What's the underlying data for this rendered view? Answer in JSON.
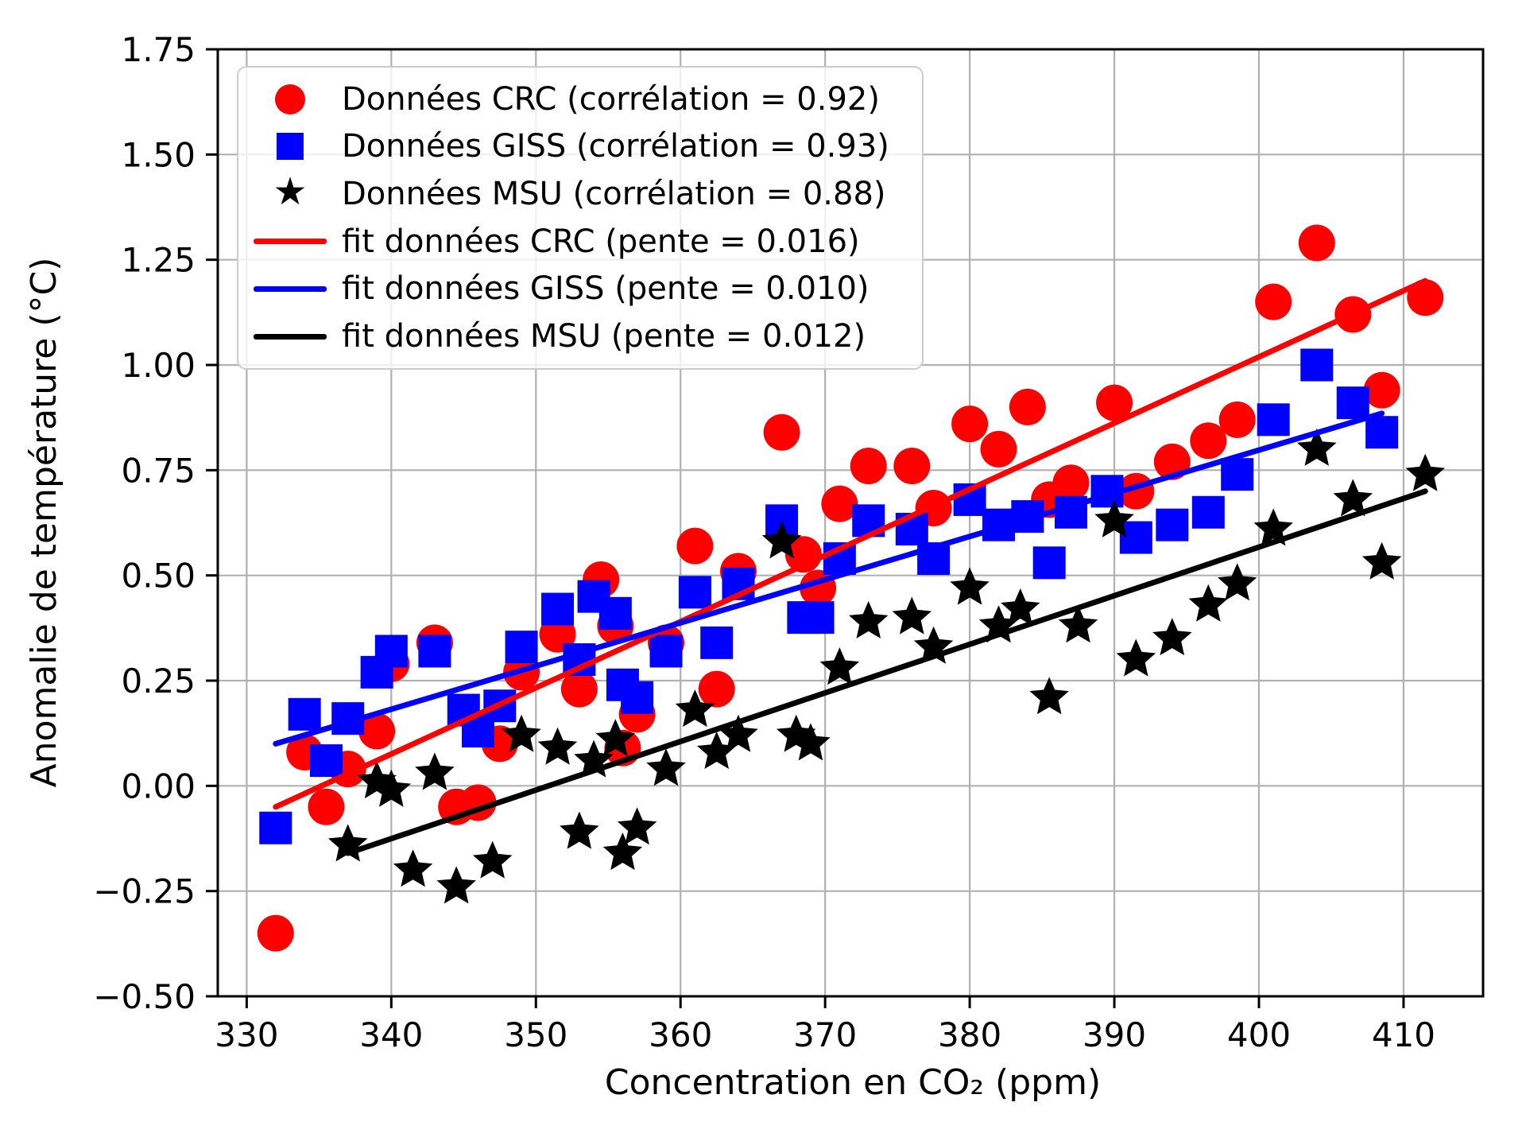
{
  "figure": {
    "background": "#ffffff"
  },
  "legend": {
    "items": [
      {
        "marker": "circle",
        "color": "#ff0000",
        "label": "Données CRC (corrélation = 0.92)"
      },
      {
        "marker": "square",
        "color": "#0000ff",
        "label": "Données GISS (corrélation = 0.93)"
      },
      {
        "marker": "star",
        "color": "#000000",
        "label": "Données MSU (corrélation = 0.88)"
      },
      {
        "marker": "line",
        "color": "#ff0000",
        "label": "fit données CRC (pente = 0.016)"
      },
      {
        "marker": "line",
        "color": "#0000ff",
        "label": "fit données GISS (pente = 0.010)"
      },
      {
        "marker": "line",
        "color": "#000000",
        "label": "fit données MSU (pente = 0.012)"
      }
    ]
  },
  "chart_data": {
    "type": "scatter",
    "title": "",
    "xlabel": "Concentration en CO₂ (ppm)",
    "ylabel": "Anomalie de température (°C)",
    "xlim": [
      328,
      415.5
    ],
    "ylim": [
      -0.5,
      1.75
    ],
    "grid": true,
    "legend_position": "upper left",
    "x_ticks": [
      {
        "v": 330,
        "label": "330"
      },
      {
        "v": 340,
        "label": "340"
      },
      {
        "v": 350,
        "label": "350"
      },
      {
        "v": 360,
        "label": "360"
      },
      {
        "v": 370,
        "label": "370"
      },
      {
        "v": 380,
        "label": "380"
      },
      {
        "v": 390,
        "label": "390"
      },
      {
        "v": 400,
        "label": "400"
      },
      {
        "v": 410,
        "label": "410"
      }
    ],
    "y_ticks": [
      {
        "v": -0.5,
        "label": "−0.50"
      },
      {
        "v": -0.25,
        "label": "−0.25"
      },
      {
        "v": 0.0,
        "label": "0.00"
      },
      {
        "v": 0.25,
        "label": "0.25"
      },
      {
        "v": 0.5,
        "label": "0.50"
      },
      {
        "v": 0.75,
        "label": "0.75"
      },
      {
        "v": 1.0,
        "label": "1.00"
      },
      {
        "v": 1.25,
        "label": "1.25"
      },
      {
        "v": 1.5,
        "label": "1.50"
      },
      {
        "v": 1.75,
        "label": "1.75"
      }
    ],
    "series": [
      {
        "id": "crc",
        "name": "Données CRC",
        "marker": "circle",
        "color": "#ff0000",
        "correlation": 0.92,
        "points": [
          [
            332,
            -0.35
          ],
          [
            334,
            0.08
          ],
          [
            335.5,
            -0.05
          ],
          [
            337,
            0.04
          ],
          [
            339,
            0.13
          ],
          [
            340,
            0.29
          ],
          [
            343,
            0.34
          ],
          [
            344.5,
            -0.05
          ],
          [
            346,
            -0.04
          ],
          [
            347.5,
            0.1
          ],
          [
            349,
            0.27
          ],
          [
            351.5,
            0.36
          ],
          [
            353,
            0.23
          ],
          [
            354.5,
            0.49
          ],
          [
            355.5,
            0.38
          ],
          [
            356,
            0.09
          ],
          [
            357,
            0.17
          ],
          [
            359,
            0.34
          ],
          [
            361,
            0.57
          ],
          [
            362.5,
            0.23
          ],
          [
            364,
            0.51
          ],
          [
            367,
            0.84
          ],
          [
            368.5,
            0.55
          ],
          [
            369.5,
            0.47
          ],
          [
            371,
            0.67
          ],
          [
            373,
            0.76
          ],
          [
            376,
            0.76
          ],
          [
            377.5,
            0.66
          ],
          [
            380,
            0.86
          ],
          [
            382,
            0.8
          ],
          [
            384,
            0.9
          ],
          [
            385.5,
            0.68
          ],
          [
            387,
            0.72
          ],
          [
            390,
            0.91
          ],
          [
            391.5,
            0.7
          ],
          [
            394,
            0.77
          ],
          [
            396.5,
            0.82
          ],
          [
            398.5,
            0.87
          ],
          [
            401,
            1.15
          ],
          [
            404,
            1.29
          ],
          [
            406.5,
            1.12
          ],
          [
            408.5,
            0.94
          ],
          [
            411.5,
            1.16
          ]
        ]
      },
      {
        "id": "giss",
        "name": "Données GISS",
        "marker": "square",
        "color": "#0000ff",
        "correlation": 0.93,
        "points": [
          [
            332,
            -0.1
          ],
          [
            334,
            0.17
          ],
          [
            335.5,
            0.06
          ],
          [
            337,
            0.16
          ],
          [
            339,
            0.27
          ],
          [
            340,
            0.32
          ],
          [
            343,
            0.32
          ],
          [
            345,
            0.18
          ],
          [
            346,
            0.13
          ],
          [
            347.5,
            0.19
          ],
          [
            349,
            0.33
          ],
          [
            351.5,
            0.42
          ],
          [
            353,
            0.3
          ],
          [
            354,
            0.45
          ],
          [
            355.5,
            0.41
          ],
          [
            356,
            0.24
          ],
          [
            357,
            0.21
          ],
          [
            359,
            0.32
          ],
          [
            361,
            0.46
          ],
          [
            362.5,
            0.34
          ],
          [
            364,
            0.48
          ],
          [
            367,
            0.63
          ],
          [
            368.5,
            0.4
          ],
          [
            369.5,
            0.4
          ],
          [
            371,
            0.54
          ],
          [
            373,
            0.63
          ],
          [
            376,
            0.61
          ],
          [
            377.5,
            0.54
          ],
          [
            380,
            0.68
          ],
          [
            382,
            0.62
          ],
          [
            384,
            0.64
          ],
          [
            385.5,
            0.53
          ],
          [
            387,
            0.65
          ],
          [
            389.5,
            0.7
          ],
          [
            391.5,
            0.59
          ],
          [
            394,
            0.62
          ],
          [
            396.5,
            0.65
          ],
          [
            398.5,
            0.74
          ],
          [
            401,
            0.87
          ],
          [
            404,
            1.0
          ],
          [
            406.5,
            0.91
          ],
          [
            408.5,
            0.84
          ]
        ]
      },
      {
        "id": "msu",
        "name": "Données MSU",
        "marker": "star",
        "color": "#000000",
        "correlation": 0.88,
        "points": [
          [
            337,
            -0.14
          ],
          [
            339,
            0.01
          ],
          [
            340,
            -0.01
          ],
          [
            341.5,
            -0.2
          ],
          [
            343,
            0.03
          ],
          [
            344.5,
            -0.24
          ],
          [
            347,
            -0.18
          ],
          [
            349,
            0.12
          ],
          [
            351.5,
            0.09
          ],
          [
            353,
            -0.11
          ],
          [
            354,
            0.06
          ],
          [
            355.5,
            0.11
          ],
          [
            356,
            -0.16
          ],
          [
            357,
            -0.1
          ],
          [
            359,
            0.04
          ],
          [
            361,
            0.18
          ],
          [
            362.5,
            0.08
          ],
          [
            364,
            0.12
          ],
          [
            367,
            0.58
          ],
          [
            368,
            0.12
          ],
          [
            369,
            0.1
          ],
          [
            371,
            0.28
          ],
          [
            373,
            0.39
          ],
          [
            376,
            0.4
          ],
          [
            377.5,
            0.33
          ],
          [
            380,
            0.47
          ],
          [
            382,
            0.38
          ],
          [
            383.5,
            0.42
          ],
          [
            385.5,
            0.21
          ],
          [
            387.5,
            0.38
          ],
          [
            390,
            0.63
          ],
          [
            391.5,
            0.3
          ],
          [
            394,
            0.35
          ],
          [
            396.5,
            0.43
          ],
          [
            398.5,
            0.48
          ],
          [
            401,
            0.61
          ],
          [
            404,
            0.8
          ],
          [
            406.5,
            0.68
          ],
          [
            408.5,
            0.53
          ],
          [
            411.5,
            0.74
          ]
        ]
      }
    ],
    "fits": [
      {
        "id": "crc",
        "name": "fit données CRC",
        "color": "#ff0000",
        "slope": 0.016,
        "x": [
          332,
          411.5
        ],
        "y": [
          -0.05,
          1.2
        ]
      },
      {
        "id": "giss",
        "name": "fit données GISS",
        "color": "#0000ff",
        "slope": 0.01,
        "x": [
          332,
          408.5
        ],
        "y": [
          0.1,
          0.885
        ]
      },
      {
        "id": "msu",
        "name": "fit données MSU",
        "color": "#000000",
        "slope": 0.012,
        "x": [
          337,
          411.5
        ],
        "y": [
          -0.16,
          0.7
        ]
      }
    ],
    "colors": {
      "grid": "#b0b0b0",
      "spine": "#000000",
      "background": "#ffffff"
    }
  }
}
